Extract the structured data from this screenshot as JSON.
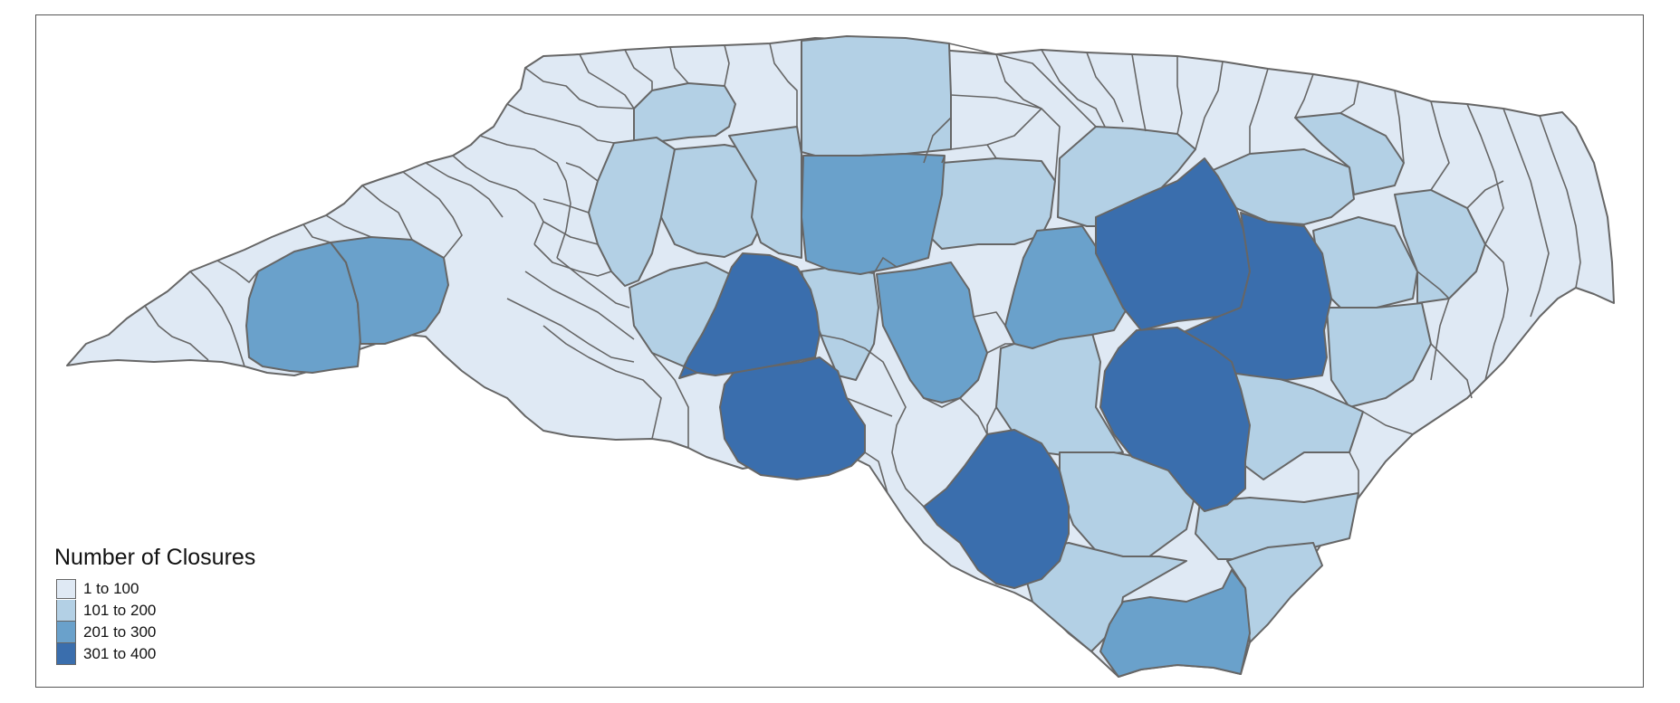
{
  "legend": {
    "title": "Number of Closures",
    "classes": [
      {
        "label": "1 to 100",
        "color": "#dfe9f4"
      },
      {
        "label": "101 to 200",
        "color": "#b3d0e5"
      },
      {
        "label": "201 to 300",
        "color": "#6aa1cb"
      },
      {
        "label": "301 to 400",
        "color": "#3a6ead"
      }
    ]
  },
  "border_color": "#666666"
}
